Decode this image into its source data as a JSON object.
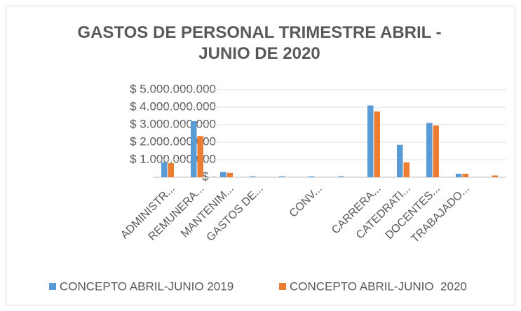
{
  "chart_data": {
    "type": "bar",
    "title": "GASTOS DE PERSONAL TRIMESTRE ABRIL -JUNIO DE 2020",
    "categories": [
      "ADMINISTR...",
      "REMUNERA...",
      "MANTENIM...",
      "GASTOS DE...",
      null,
      "CONV...",
      null,
      "CARRERA...",
      "CATEDRATI...",
      "DOCENTES...",
      "TRABAJADO...",
      null
    ],
    "series": [
      {
        "name": "CONCEPTO ABRIL-JUNIO 2019",
        "color": "#5b9bd5",
        "values": [
          850000000,
          3200000000,
          300000000,
          50000000,
          50000000,
          50000000,
          50000000,
          4100000000,
          1850000000,
          3100000000,
          200000000,
          0
        ]
      },
      {
        "name": "CONCEPTO ABRIL-JUNIO  2020",
        "color": "#ed7d31",
        "values": [
          800000000,
          2350000000,
          250000000,
          0,
          0,
          0,
          0,
          3750000000,
          850000000,
          2950000000,
          200000000,
          100000000
        ]
      }
    ],
    "ylim": [
      0,
      5000000000
    ],
    "yticks": [
      {
        "value": 0,
        "label": "$ -"
      },
      {
        "value": 1000000000,
        "label": "$ 1.000.000.000"
      },
      {
        "value": 2000000000,
        "label": "$ 2.000.000.000"
      },
      {
        "value": 3000000000,
        "label": "$ 3.000.000.000"
      },
      {
        "value": 4000000000,
        "label": "$ 4.000.000.000"
      },
      {
        "value": 5000000000,
        "label": "$ 5.000.000.000"
      }
    ],
    "grid": true,
    "legend": "bottom"
  }
}
